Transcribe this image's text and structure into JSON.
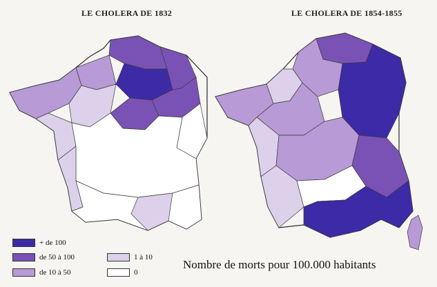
{
  "titles": {
    "left": "LE CHOLERA DE 1832",
    "right": "LE CHOLERA DE 1854-1855"
  },
  "legend": [
    {
      "label": "+ de 100",
      "color": "#3d2aa6"
    },
    {
      "label": "de 50 à 100",
      "color": "#7a52b5"
    },
    {
      "label": "de 10 à 50",
      "color": "#b89ad6"
    },
    {
      "label": "1 à 10",
      "color": "#ddd0ea"
    },
    {
      "label": "0",
      "color": "#ffffff"
    }
  ],
  "caption": "Nombre de morts pour 100.000 habitants"
}
